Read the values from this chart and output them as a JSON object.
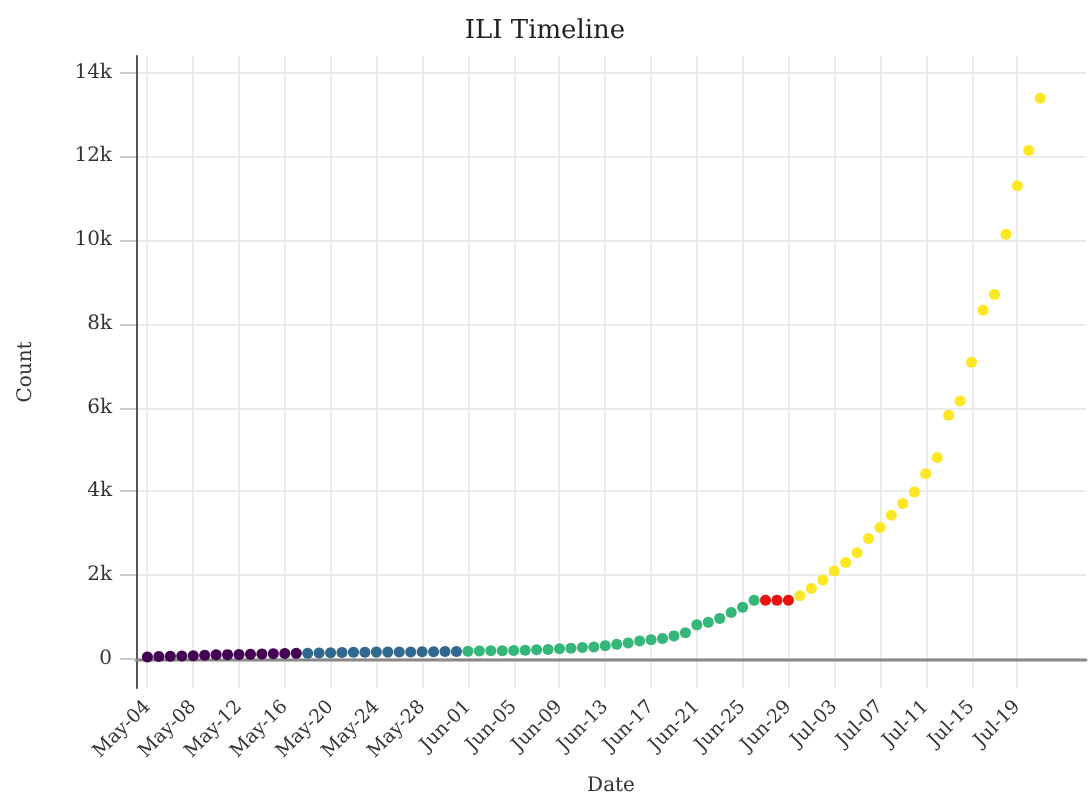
{
  "chart_data": {
    "type": "scatter",
    "title": "ILI Timeline",
    "xlabel": "Date",
    "ylabel": "Count",
    "x": [
      "--05-04",
      "--05-05",
      "--05-06",
      "--05-07",
      "--05-08",
      "--05-09",
      "--05-10",
      "--05-11",
      "--05-12",
      "--05-13",
      "--05-14",
      "--05-15",
      "--05-16",
      "--05-17",
      "--05-18",
      "--05-19",
      "--05-20",
      "--05-21",
      "--05-22",
      "--05-23",
      "--05-24",
      "--05-25",
      "--05-26",
      "--05-27",
      "--05-28",
      "--05-29",
      "--05-30",
      "--05-31",
      "--06-01",
      "--06-02",
      "--06-03",
      "--06-04",
      "--06-05",
      "--06-06",
      "--06-07",
      "--06-08",
      "--06-09",
      "--06-10",
      "--06-11",
      "--06-12",
      "--06-13",
      "--06-14",
      "--06-15",
      "--06-16",
      "--06-17",
      "--06-18",
      "--06-19",
      "--06-20",
      "--06-21",
      "--06-22",
      "--06-23",
      "--06-24",
      "--06-25",
      "--06-26",
      "--06-27",
      "--06-28",
      "--06-29",
      "--06-30",
      "--07-01",
      "--07-02",
      "--07-03",
      "--07-04",
      "--07-05",
      "--07-06",
      "--07-07",
      "--07-08",
      "--07-09",
      "--07-10",
      "--07-11",
      "--07-12",
      "--07-13",
      "--07-14",
      "--07-15",
      "--07-16",
      "--07-17",
      "--07-18",
      "--07-19",
      "--07-20",
      "--07-21"
    ],
    "values": [
      40,
      50,
      55,
      60,
      70,
      80,
      90,
      95,
      100,
      105,
      110,
      115,
      120,
      125,
      130,
      135,
      140,
      145,
      150,
      150,
      155,
      155,
      160,
      160,
      165,
      165,
      170,
      170,
      175,
      180,
      185,
      190,
      195,
      200,
      210,
      220,
      235,
      250,
      264,
      279,
      310,
      341,
      372,
      419,
      450,
      481,
      543,
      620,
      806,
      868,
      961,
      1100,
      1225,
      1395,
      1395,
      1395,
      1395,
      1504,
      1674,
      1876,
      2093,
      2294,
      2527,
      2868,
      3131,
      3426,
      3705,
      3984,
      4418,
      4805,
      5813,
      6154,
      7084,
      8325,
      8700,
      10140,
      11300,
      12140,
      13390
    ],
    "colors": [
      "#440154",
      "#440154",
      "#440154",
      "#440154",
      "#440154",
      "#440154",
      "#440154",
      "#440154",
      "#440154",
      "#440154",
      "#440154",
      "#440154",
      "#440154",
      "#440154",
      "#31688e",
      "#31688e",
      "#31688e",
      "#31688e",
      "#31688e",
      "#31688e",
      "#31688e",
      "#31688e",
      "#31688e",
      "#31688e",
      "#31688e",
      "#31688e",
      "#31688e",
      "#31688e",
      "#35b779",
      "#35b779",
      "#35b779",
      "#35b779",
      "#35b779",
      "#35b779",
      "#35b779",
      "#35b779",
      "#35b779",
      "#35b779",
      "#35b779",
      "#35b779",
      "#35b779",
      "#35b779",
      "#35b779",
      "#35b779",
      "#35b779",
      "#35b779",
      "#35b779",
      "#35b779",
      "#35b779",
      "#35b779",
      "#35b779",
      "#35b779",
      "#35b779",
      "#35b779",
      "#e8110e",
      "#e8110e",
      "#e8110e",
      "#fde725",
      "#fde725",
      "#fde725",
      "#fde725",
      "#fde725",
      "#fde725",
      "#fde725",
      "#fde725",
      "#fde725",
      "#fde725",
      "#fde725",
      "#fde725",
      "#fde725",
      "#fde725",
      "#fde725",
      "#fde725",
      "#fde725",
      "#fde725",
      "#fde725",
      "#fde725",
      "#fde725",
      "#fde725"
    ],
    "xlim": [
      "--05-03",
      "--07-25"
    ],
    "xticks": [
      {
        "value": "--05-04",
        "label": "May-04"
      },
      {
        "value": "--05-08",
        "label": "May-08"
      },
      {
        "value": "--05-12",
        "label": "May-12"
      },
      {
        "value": "--05-16",
        "label": "May-16"
      },
      {
        "value": "--05-20",
        "label": "May-20"
      },
      {
        "value": "--05-24",
        "label": "May-24"
      },
      {
        "value": "--05-28",
        "label": "May-28"
      },
      {
        "value": "--06-01",
        "label": "Jun-01"
      },
      {
        "value": "--06-05",
        "label": "Jun-05"
      },
      {
        "value": "--06-09",
        "label": "Jun-09"
      },
      {
        "value": "--06-13",
        "label": "Jun-13"
      },
      {
        "value": "--06-17",
        "label": "Jun-17"
      },
      {
        "value": "--06-21",
        "label": "Jun-21"
      },
      {
        "value": "--06-25",
        "label": "Jun-25"
      },
      {
        "value": "--06-29",
        "label": "Jun-29"
      },
      {
        "value": "--07-03",
        "label": "Jul-03"
      },
      {
        "value": "--07-07",
        "label": "Jul-07"
      },
      {
        "value": "--07-11",
        "label": "Jul-11"
      },
      {
        "value": "--07-15",
        "label": "Jul-15"
      },
      {
        "value": "--07-19",
        "label": "Jul-19"
      }
    ],
    "ylim": [
      -700,
      14400
    ],
    "yticks": [
      0,
      {
        "value": 2000,
        "label": "2k"
      },
      {
        "value": 4000,
        "label": "4k"
      },
      {
        "value": 6000,
        "label": "6k"
      },
      {
        "value": 8000,
        "label": "8k"
      },
      {
        "value": 10000,
        "label": "10k"
      },
      {
        "value": 12000,
        "label": "12k"
      },
      {
        "value": 14000,
        "label": "14k"
      }
    ],
    "grid": true,
    "marker": "circle"
  }
}
